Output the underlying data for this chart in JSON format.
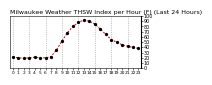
{
  "title": "Milwaukee Weather THSW Index per Hour (F) (Last 24 Hours)",
  "hours": [
    0,
    1,
    2,
    3,
    4,
    5,
    6,
    7,
    8,
    9,
    10,
    11,
    12,
    13,
    14,
    15,
    16,
    17,
    18,
    19,
    20,
    21,
    22,
    23
  ],
  "values": [
    22,
    20,
    19,
    20,
    21,
    20,
    20,
    22,
    35,
    52,
    68,
    80,
    88,
    92,
    90,
    85,
    75,
    65,
    55,
    50,
    45,
    42,
    40,
    38
  ],
  "line_color": "#dd0000",
  "marker_color": "#000000",
  "bg_color": "#ffffff",
  "grid_color": "#999999",
  "ylim": [
    0,
    100
  ],
  "yticks": [
    0,
    10,
    20,
    30,
    40,
    50,
    60,
    70,
    80,
    90,
    100
  ],
  "title_fontsize": 4.5,
  "tick_fontsize": 3.5,
  "grid_hours": [
    0,
    3,
    6,
    9,
    12,
    15,
    18,
    21
  ]
}
